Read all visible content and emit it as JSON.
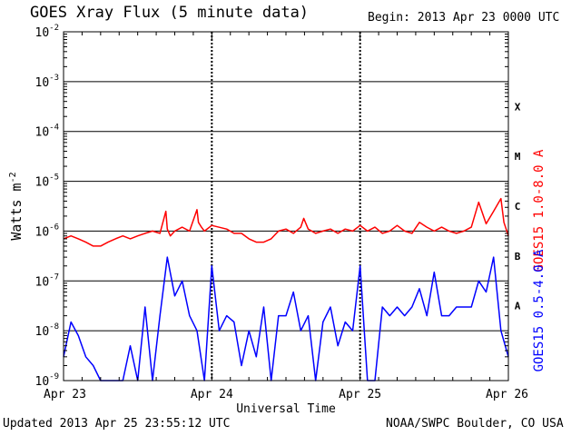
{
  "header": {
    "title": "GOES Xray Flux (5 minute data)",
    "begin": "Begin:  2013 Apr 23 0000 UTC"
  },
  "footer": {
    "updated": "Updated 2013 Apr 25 23:55:12 UTC",
    "credit": "NOAA/SWPC Boulder, CO USA"
  },
  "chart_data": {
    "type": "line",
    "title": "GOES Xray Flux (5 minute data)",
    "xlabel": "Universal Time",
    "ylabel": "Watts m",
    "ylabel_sup": "-2",
    "y_scale": "log",
    "ylim": [
      1e-09,
      0.01
    ],
    "y_ticks": [
      {
        "base": "10",
        "exp": "-9",
        "value": 1e-09
      },
      {
        "base": "10",
        "exp": "-8",
        "value": 1e-08
      },
      {
        "base": "10",
        "exp": "-7",
        "value": 1e-07
      },
      {
        "base": "10",
        "exp": "-6",
        "value": 1e-06
      },
      {
        "base": "10",
        "exp": "-5",
        "value": 1e-05
      },
      {
        "base": "10",
        "exp": "-4",
        "value": 0.0001
      },
      {
        "base": "10",
        "exp": "-3",
        "value": 0.001
      },
      {
        "base": "10",
        "exp": "-2",
        "value": 0.01
      }
    ],
    "x_range": [
      "2013-04-23 00:00",
      "2013-04-26 00:00"
    ],
    "x_ticks": [
      {
        "label": "Apr 23",
        "day": 0
      },
      {
        "label": "Apr 24",
        "day": 1
      },
      {
        "label": "Apr 25",
        "day": 2
      },
      {
        "label": "Apr 26",
        "day": 3
      }
    ],
    "flare_classes": [
      {
        "label": "A",
        "value": 1e-08
      },
      {
        "label": "B",
        "value": 1e-07
      },
      {
        "label": "C",
        "value": 1e-06
      },
      {
        "label": "M",
        "value": 1e-05
      },
      {
        "label": "X",
        "value": 0.0001
      }
    ],
    "grid": true,
    "series": [
      {
        "name": "GOES15 1.0-8.0 A",
        "color": "#ff0000",
        "x_days": [
          0.0,
          0.05,
          0.1,
          0.15,
          0.2,
          0.25,
          0.3,
          0.35,
          0.4,
          0.45,
          0.5,
          0.55,
          0.6,
          0.65,
          0.69,
          0.7,
          0.72,
          0.75,
          0.8,
          0.85,
          0.9,
          0.91,
          0.93,
          0.95,
          1.0,
          1.1,
          1.15,
          1.2,
          1.25,
          1.3,
          1.35,
          1.4,
          1.45,
          1.5,
          1.55,
          1.6,
          1.62,
          1.65,
          1.7,
          1.75,
          1.8,
          1.85,
          1.9,
          1.95,
          2.0,
          2.05,
          2.1,
          2.15,
          2.2,
          2.25,
          2.3,
          2.35,
          2.4,
          2.45,
          2.5,
          2.55,
          2.6,
          2.65,
          2.7,
          2.75,
          2.8,
          2.85,
          2.9,
          2.95,
          2.97,
          3.0
        ],
        "values": [
          7e-07,
          8e-07,
          7e-07,
          6e-07,
          5e-07,
          5e-07,
          6e-07,
          7e-07,
          8e-07,
          7e-07,
          8e-07,
          9e-07,
          1e-06,
          9e-07,
          2.5e-06,
          1.1e-06,
          8e-07,
          1e-06,
          1.2e-06,
          1e-06,
          2.7e-06,
          1.5e-06,
          1.2e-06,
          1e-06,
          1.3e-06,
          1.1e-06,
          9e-07,
          9e-07,
          7e-07,
          6e-07,
          6e-07,
          7e-07,
          1e-06,
          1.1e-06,
          9e-07,
          1.2e-06,
          1.8e-06,
          1.1e-06,
          9e-07,
          1e-06,
          1.1e-06,
          9e-07,
          1.1e-06,
          1e-06,
          1.3e-06,
          1e-06,
          1.2e-06,
          9e-07,
          1e-06,
          1.3e-06,
          1e-06,
          9e-07,
          1.5e-06,
          1.2e-06,
          1e-06,
          1.2e-06,
          1e-06,
          9e-07,
          1e-06,
          1.2e-06,
          3.8e-06,
          1.4e-06,
          2.5e-06,
          4.5e-06,
          1.5e-06,
          8e-07
        ]
      },
      {
        "name": "GOES15 0.5-4.0 A",
        "color": "#0000ff",
        "x_days": [
          0.0,
          0.05,
          0.1,
          0.15,
          0.2,
          0.25,
          0.3,
          0.35,
          0.4,
          0.45,
          0.5,
          0.55,
          0.6,
          0.65,
          0.7,
          0.75,
          0.8,
          0.85,
          0.9,
          0.95,
          1.0,
          1.05,
          1.1,
          1.15,
          1.2,
          1.25,
          1.3,
          1.35,
          1.4,
          1.45,
          1.5,
          1.55,
          1.6,
          1.65,
          1.7,
          1.75,
          1.8,
          1.85,
          1.9,
          1.95,
          2.0,
          2.05,
          2.1,
          2.15,
          2.2,
          2.25,
          2.3,
          2.35,
          2.4,
          2.45,
          2.5,
          2.55,
          2.6,
          2.65,
          2.7,
          2.75,
          2.8,
          2.85,
          2.9,
          2.95,
          3.0
        ],
        "values": [
          3e-09,
          1.5e-08,
          8e-09,
          3e-09,
          2e-09,
          1e-09,
          1e-09,
          1e-09,
          1e-09,
          5e-09,
          1e-09,
          3e-08,
          1e-09,
          2e-08,
          3e-07,
          5e-08,
          1e-07,
          2e-08,
          1e-08,
          1e-09,
          2e-07,
          1e-08,
          2e-08,
          1.5e-08,
          2e-09,
          1e-08,
          3e-09,
          3e-08,
          1e-09,
          2e-08,
          2e-08,
          6e-08,
          1e-08,
          2e-08,
          1e-09,
          1.5e-08,
          3e-08,
          5e-09,
          1.5e-08,
          1e-08,
          2e-07,
          1e-09,
          1e-09,
          3e-08,
          2e-08,
          3e-08,
          2e-08,
          3e-08,
          7e-08,
          2e-08,
          1.5e-07,
          2e-08,
          2e-08,
          3e-08,
          3e-08,
          3e-08,
          1e-07,
          6e-08,
          3e-07,
          1e-08,
          3e-09
        ]
      }
    ]
  }
}
